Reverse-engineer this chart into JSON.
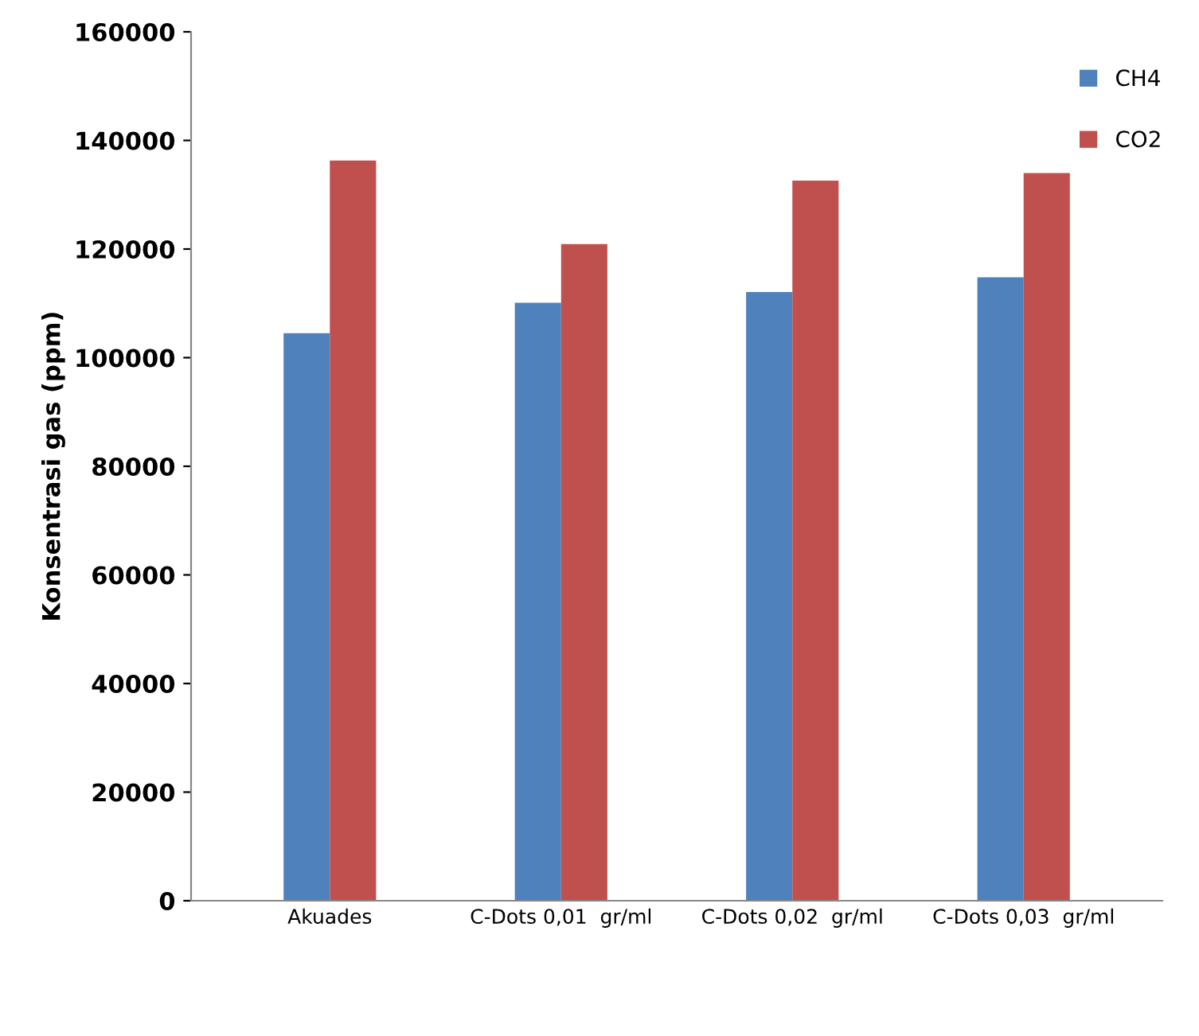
{
  "chart_data": {
    "type": "bar",
    "ylabel": "Konsentrasi gas (ppm)",
    "categories": [
      "Akuades",
      "C-Dots 0,01  gr/ml",
      "C-Dots 0,02  gr/ml",
      "C-Dots 0,03  gr/ml"
    ],
    "series": [
      {
        "name": "CH4",
        "color": "#4f81bd",
        "values": [
          104500,
          110100,
          112100,
          114800
        ]
      },
      {
        "name": "CO2",
        "color": "#c0504d",
        "values": [
          136300,
          120900,
          132600,
          134000
        ]
      }
    ],
    "ylim": [
      0,
      160000
    ],
    "yticks": [
      0,
      20000,
      40000,
      60000,
      80000,
      100000,
      120000,
      140000,
      160000
    ],
    "grid": false,
    "legend": "top right"
  }
}
